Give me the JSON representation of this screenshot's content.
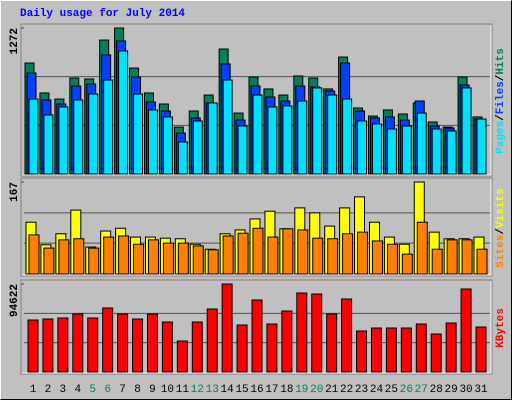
{
  "chart_data": [
    {
      "type": "bar",
      "title": "Daily usage for July 2014",
      "series": [
        {
          "name": "Hits",
          "color": "#00805c",
          "values": [
            967,
            706,
            653,
            836,
            828,
            1167,
            1272,
            923,
            706,
            610,
            409,
            549,
            688,
            1089,
            531,
            845,
            741,
            688,
            854,
            836,
            741,
            1019,
            575,
            505,
            558,
            523,
            619,
            453,
            409,
            845,
            497
          ]
        },
        {
          "name": "Files",
          "color": "#0040ff",
          "values": [
            880,
            645,
            610,
            767,
            784,
            1037,
            1159,
            845,
            627,
            549,
            357,
            488,
            619,
            959,
            470,
            767,
            671,
            636,
            767,
            758,
            723,
            967,
            549,
            488,
            497,
            470,
            636,
            418,
            401,
            775,
            479
          ]
        },
        {
          "name": "Pages",
          "color": "#00e0ff",
          "values": [
            653,
            514,
            584,
            645,
            697,
            819,
            1072,
            697,
            558,
            497,
            279,
            462,
            619,
            819,
            418,
            688,
            584,
            593,
            636,
            750,
            688,
            653,
            462,
            436,
            392,
            418,
            531,
            392,
            375,
            750,
            479
          ]
        }
      ],
      "ylim": [
        0,
        1272
      ],
      "yticks": [
        1272
      ],
      "grid_lines": [
        424,
        848
      ],
      "legend_separator": "/"
    },
    {
      "type": "bar",
      "series": [
        {
          "name": "Visits",
          "color": "#ffff00",
          "values": [
            94,
            53,
            73,
            116,
            49,
            78,
            83,
            67,
            67,
            65,
            64,
            54,
            45,
            73,
            80,
            100,
            114,
            82,
            120,
            111,
            87,
            120,
            140,
            94,
            67,
            54,
            167,
            76,
            64,
            64,
            67
          ]
        },
        {
          "name": "Sites",
          "color": "#ff8000",
          "values": [
            71,
            47,
            62,
            64,
            47,
            67,
            69,
            54,
            62,
            56,
            56,
            51,
            44,
            69,
            74,
            83,
            67,
            82,
            80,
            65,
            64,
            73,
            76,
            60,
            54,
            36,
            94,
            45,
            62,
            62,
            45
          ]
        }
      ],
      "ylim": [
        0,
        167
      ],
      "yticks": [
        167
      ],
      "grid_lines": [
        56,
        111
      ],
      "legend_separator": "/"
    },
    {
      "type": "bar",
      "categories": [
        "1",
        "2",
        "3",
        "4",
        "5",
        "6",
        "7",
        "8",
        "9",
        "10",
        "11",
        "12",
        "13",
        "14",
        "15",
        "16",
        "17",
        "18",
        "19",
        "20",
        "21",
        "22",
        "23",
        "24",
        "25",
        "26",
        "27",
        "28",
        "29",
        "30",
        "31"
      ],
      "category_colors": [
        "#000000",
        "#000000",
        "#000000",
        "#000000",
        "#00805c",
        "#00805c",
        "#000000",
        "#000000",
        "#000000",
        "#000000",
        "#000000",
        "#00805c",
        "#00805c",
        "#000000",
        "#000000",
        "#000000",
        "#000000",
        "#000000",
        "#00805c",
        "#00805c",
        "#000000",
        "#000000",
        "#000000",
        "#000000",
        "#000000",
        "#00805c",
        "#00805c",
        "#000000",
        "#000000",
        "#000000",
        "#000000"
      ],
      "series": [
        {
          "name": "KBytes",
          "color": "#ff0000",
          "values": [
            55912,
            56988,
            58065,
            62366,
            58065,
            68818,
            62366,
            56988,
            62366,
            53763,
            33333,
            53763,
            67743,
            94622,
            50538,
            77418,
            51613,
            65590,
            84945,
            83870,
            62366,
            78494,
            44085,
            47312,
            47312,
            47312,
            51613,
            40860,
            52688,
            89247,
            48387
          ]
        }
      ],
      "ylim": [
        0,
        94622
      ],
      "yticks": [
        94622
      ],
      "grid_lines": [
        31541,
        63081
      ]
    }
  ]
}
